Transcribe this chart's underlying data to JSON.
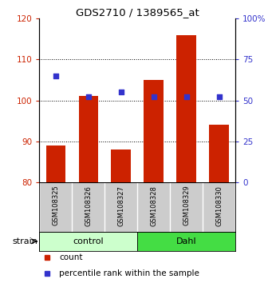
{
  "title": "GDS2710 / 1389565_at",
  "samples": [
    "GSM108325",
    "GSM108326",
    "GSM108327",
    "GSM108328",
    "GSM108329",
    "GSM108330"
  ],
  "counts": [
    89,
    101,
    88,
    105,
    116,
    94
  ],
  "percentiles": [
    65,
    52,
    55,
    52,
    52,
    52
  ],
  "ylim_left": [
    80,
    120
  ],
  "ylim_right": [
    0,
    100
  ],
  "yticks_left": [
    80,
    90,
    100,
    110,
    120
  ],
  "yticks_right": [
    0,
    25,
    50,
    75,
    100
  ],
  "yticklabels_right": [
    "0",
    "25",
    "50",
    "75",
    "100%"
  ],
  "bar_color": "#cc2200",
  "dot_color": "#3333cc",
  "groups": [
    {
      "label": "control",
      "start": 0,
      "end": 3,
      "color": "#ccffcc"
    },
    {
      "label": "Dahl",
      "start": 3,
      "end": 6,
      "color": "#44dd44"
    }
  ],
  "strain_label": "strain",
  "legend_count": "count",
  "legend_pct": "percentile rank within the sample",
  "bg_color": "#ffffff",
  "tick_color_left": "#cc2200",
  "tick_color_right": "#3333cc",
  "grid_ticks": [
    90,
    100,
    110
  ],
  "sample_area_color": "#cccccc",
  "bar_width": 0.6
}
